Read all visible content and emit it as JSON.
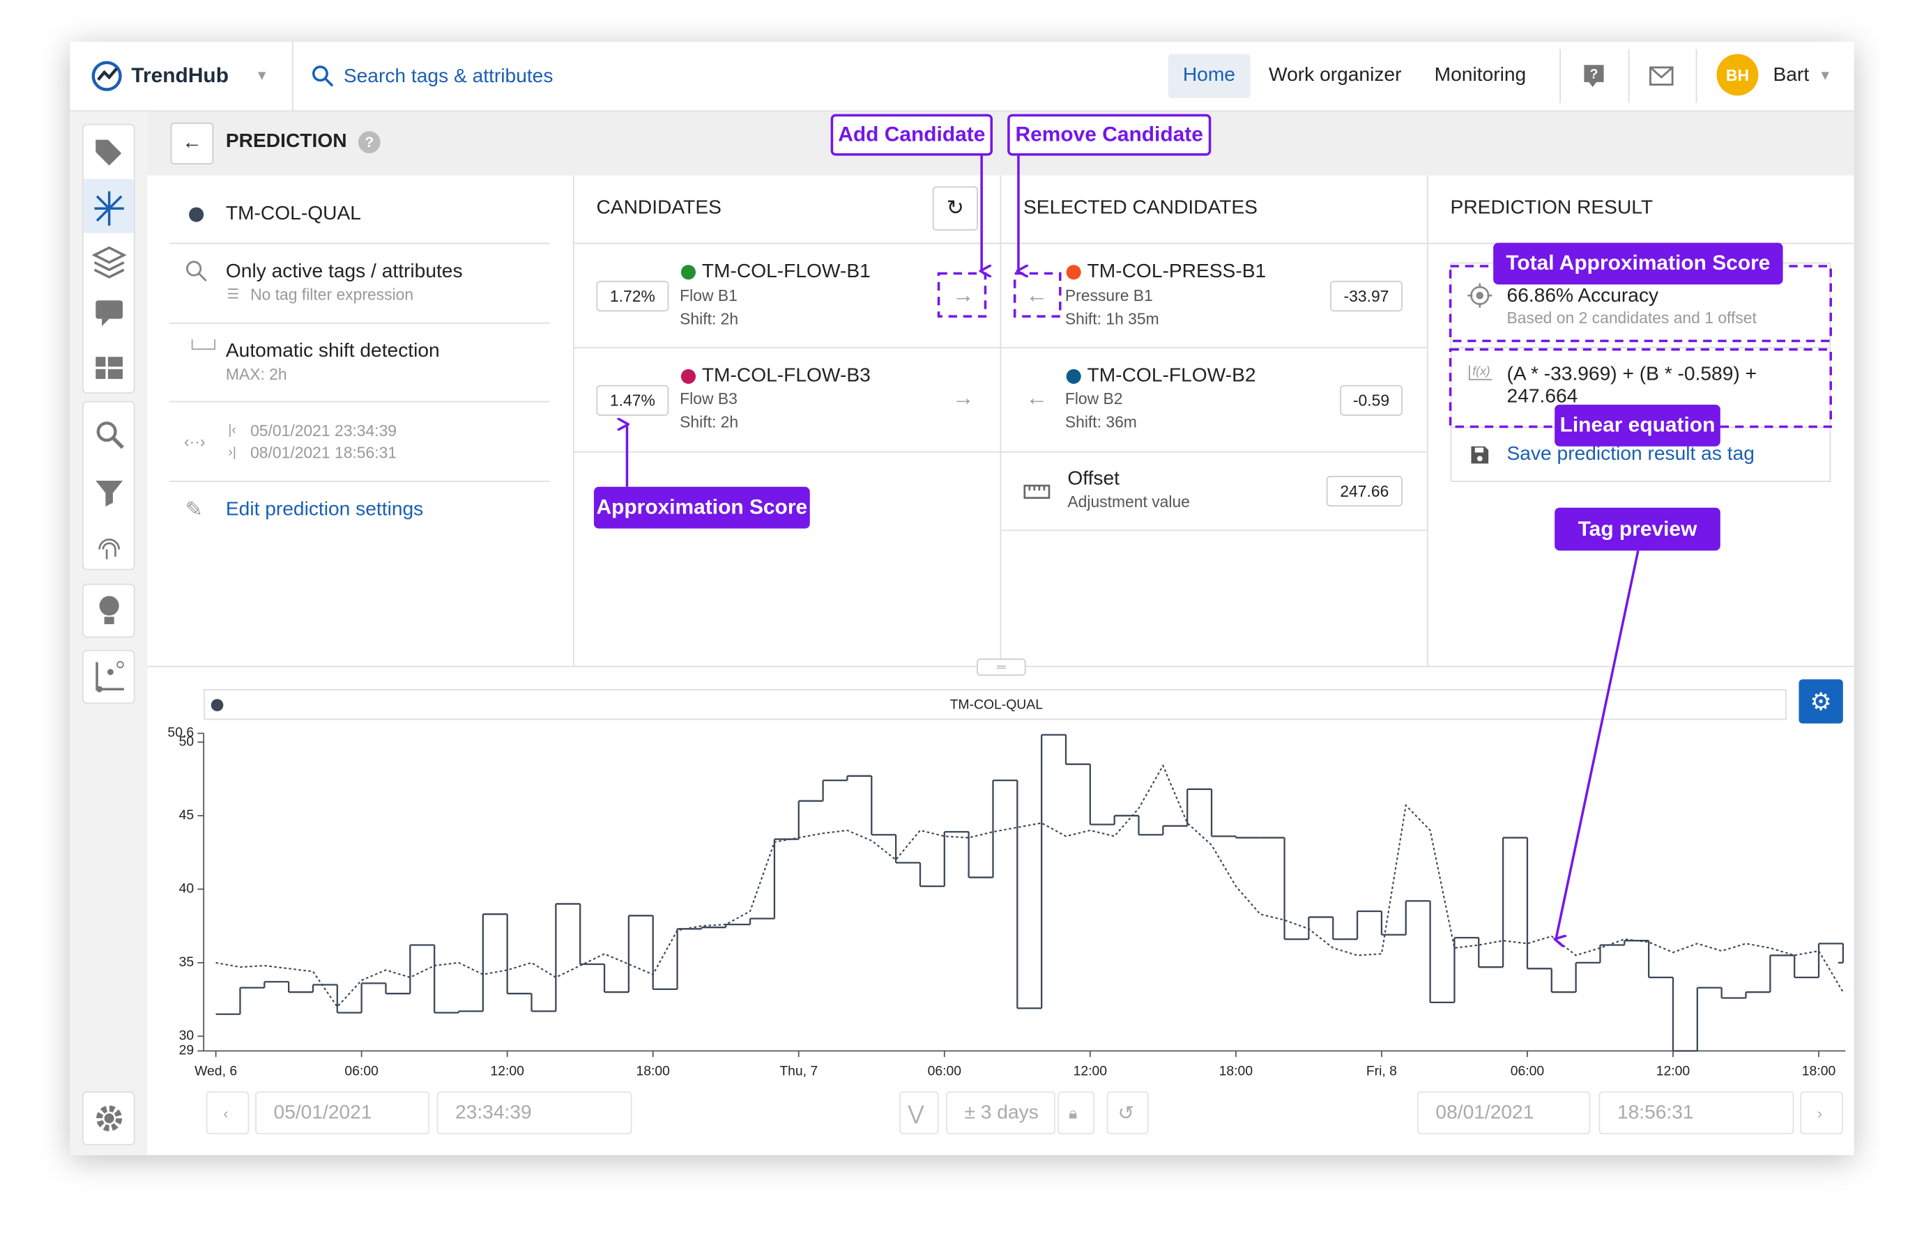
{
  "header": {
    "logo": "TrendHub",
    "search": "Search tags & attributes",
    "nav": [
      "Home",
      "Work organizer",
      "Monitoring"
    ],
    "avatar": "BH",
    "user": "Bart"
  },
  "page": {
    "title": "PREDICTION"
  },
  "settings": {
    "tag": "TM-COL-QUAL",
    "filter": "Only active tags / attributes",
    "filter_note": "No tag filter expression",
    "shift": "Automatic shift detection",
    "shift_note": "MAX: 2h",
    "start": "05/01/2021 23:34:39",
    "end": "08/01/2021 18:56:31",
    "edit": "Edit prediction settings"
  },
  "candidates": {
    "title": "CANDIDATES",
    "items": [
      {
        "score": "1.72%",
        "name": "TM-COL-FLOW-B1",
        "description": "Flow B1",
        "shift": "Shift: 2h",
        "color": "#23912f"
      },
      {
        "score": "1.47%",
        "name": "TM-COL-FLOW-B3",
        "description": "Flow B3",
        "shift": "Shift: 2h",
        "color": "#c2185b"
      }
    ]
  },
  "selected": {
    "title": "SELECTED CANDIDATES",
    "items": [
      {
        "name": "TM-COL-PRESS-B1",
        "description": "Pressure B1",
        "shift": "Shift: 1h 35m",
        "coefficient": "-33.97",
        "color": "#f4511e"
      },
      {
        "name": "TM-COL-FLOW-B2",
        "description": "Flow B2",
        "shift": "Shift: 36m",
        "coefficient": "-0.59",
        "color": "#0b5c8a"
      }
    ],
    "offset": {
      "name": "Offset",
      "description": "Adjustment value",
      "value": "247.66"
    }
  },
  "result": {
    "title": "PREDICTION RESULT",
    "accuracy": "66.86% Accuracy",
    "note": "Based on 2 candidates and 1 offset",
    "fx": "f(x)",
    "equation": "(A * -33.969) + (B * -0.589) + 247.664",
    "save": "Save prediction result as tag"
  },
  "annotations": {
    "add": "Add Candidate",
    "remove": "Remove Candidate",
    "total": "Total Approximation Score",
    "equation": "Linear equation",
    "score": "Approximation Score",
    "preview": "Tag preview"
  },
  "chart_data": {
    "type": "line",
    "title": "TM-COL-QUAL",
    "x": [
      0,
      1,
      2,
      3,
      4,
      5,
      6,
      7,
      8,
      9,
      10,
      11,
      12,
      13,
      14,
      15,
      16,
      17,
      18,
      19,
      20,
      21,
      22,
      23,
      24,
      25,
      26,
      27,
      28,
      29,
      30,
      31,
      32,
      33,
      34,
      35,
      36,
      37,
      38,
      39,
      40,
      41,
      42,
      43,
      44,
      45,
      46,
      47,
      48,
      49,
      50,
      51,
      52,
      53,
      54,
      55,
      56,
      57,
      58,
      59,
      60,
      61,
      62,
      63,
      64,
      65,
      66,
      67
    ],
    "xlim": [
      -0.5,
      67.1
    ],
    "xticks": [
      {
        "value": 0,
        "label": "Wed, 6"
      },
      {
        "value": 6,
        "label": "06:00"
      },
      {
        "value": 12,
        "label": "12:00"
      },
      {
        "value": 18,
        "label": "18:00"
      },
      {
        "value": 24,
        "label": "Thu, 7"
      },
      {
        "value": 30,
        "label": "06:00"
      },
      {
        "value": 36,
        "label": "12:00"
      },
      {
        "value": 42,
        "label": "18:00"
      },
      {
        "value": 48,
        "label": "Fri, 8"
      },
      {
        "value": 54,
        "label": "06:00"
      },
      {
        "value": 60,
        "label": "12:00"
      },
      {
        "value": 66,
        "label": "18:00"
      }
    ],
    "ylim": [
      29,
      50.6
    ],
    "yticks": [
      29,
      30,
      35,
      40,
      45,
      50,
      50.6
    ],
    "series": [
      {
        "color": "#3b4756",
        "line_style": "step",
        "values": [
          31.5,
          33.3,
          33.7,
          33.0,
          33.5,
          31.6,
          33.6,
          32.9,
          36.2,
          31.6,
          31.7,
          38.3,
          32.9,
          31.7,
          39.0,
          34.9,
          33.0,
          38.2,
          33.2,
          37.3,
          37.4,
          37.6,
          38.0,
          43.4,
          46.0,
          47.4,
          47.7,
          43.7,
          41.8,
          40.2,
          43.9,
          40.8,
          47.4,
          31.9,
          50.5,
          48.5,
          44.4,
          45.0,
          43.7,
          44.3,
          46.8,
          43.6,
          43.5,
          43.5,
          36.6,
          38.1,
          36.6,
          38.5,
          36.9,
          39.2,
          32.3,
          36.7,
          34.7,
          43.5,
          34.6,
          33.0,
          35.0,
          36.2,
          36.5,
          34.0,
          29.0,
          33.3,
          32.6,
          33.0,
          35.5,
          34.0,
          36.3,
          35.0
        ]
      },
      {
        "color": "#3b4756",
        "line_style": "dotted",
        "values": [
          35.0,
          34.7,
          34.8,
          34.6,
          34.4,
          32.0,
          33.8,
          34.5,
          34.0,
          34.8,
          35.0,
          34.2,
          34.5,
          35.0,
          34.0,
          34.8,
          35.6,
          34.9,
          34.2,
          37.2,
          37.5,
          37.6,
          38.5,
          43.2,
          43.5,
          43.8,
          44.0,
          43.3,
          42.0,
          44.0,
          43.6,
          43.5,
          43.9,
          44.2,
          44.5,
          43.6,
          44.0,
          43.6,
          45.5,
          48.4,
          44.5,
          43.0,
          40.2,
          38.3,
          37.9,
          37.3,
          36.0,
          35.5,
          35.6,
          45.7,
          44.0,
          36.0,
          36.2,
          36.5,
          36.3,
          36.8,
          35.5,
          36.0,
          36.6,
          36.4,
          35.7,
          36.3,
          35.8,
          36.3,
          36.0,
          35.5,
          35.8,
          33.0
        ]
      }
    ]
  },
  "footer": {
    "start_date": "05/01/2021",
    "start_time": "23:34:39",
    "range": "± 3 days",
    "end_date": "08/01/2021",
    "end_time": "18:56:31"
  }
}
